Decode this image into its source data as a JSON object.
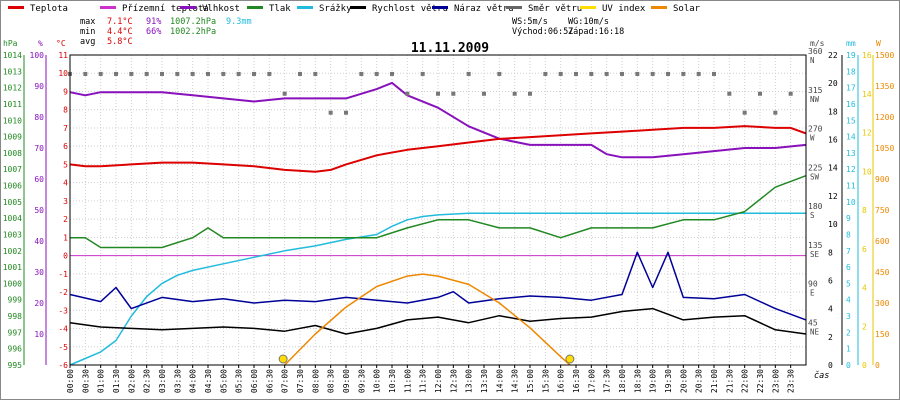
{
  "chart_data": {
    "type": "line",
    "title": "11.11.2009",
    "legend": [
      {
        "label": "Teplota",
        "color": "#dd0000"
      },
      {
        "label": "Přízemní teplota",
        "color": "#cc33cc"
      },
      {
        "label": "Vlhkost",
        "color": "#8811bb"
      },
      {
        "label": "Tlak",
        "color": "#228822"
      },
      {
        "label": "Srážky",
        "color": "#22bbdd"
      },
      {
        "label": "Rychlost větru",
        "color": "#000000"
      },
      {
        "label": "Náraz větru",
        "color": "#000099"
      },
      {
        "label": "Směr větru",
        "color": "#666666"
      },
      {
        "label": "UV index",
        "color": "#ffdd00"
      },
      {
        "label": "Solar",
        "color": "#ee8800"
      }
    ],
    "stats": {
      "max_label": "max",
      "max_temp": "7.1°C",
      "max_hum": "91%",
      "max_press": "1007.2hPa",
      "rain_total": "9.3mm",
      "min_label": "min",
      "min_temp": "4.4°C",
      "min_hum": "66%",
      "min_press": "1002.2hPa",
      "avg_label": "avg",
      "avg_temp": "5.8°C"
    },
    "wind_info": {
      "ws": "WS:5m/s",
      "wg": "WG:10m/s",
      "sunrise": "Východ:06:57",
      "sunset": "Západ:16:18"
    },
    "axes": {
      "hpa_unit": "hPa",
      "hpa_ticks": [
        "1014",
        "1013",
        "1012",
        "1011",
        "1010",
        "1009",
        "1008",
        "1007",
        "1006",
        "1005",
        "1004",
        "1003",
        "1002",
        "1001",
        "1000",
        "999",
        "998",
        "997",
        "996",
        "995"
      ],
      "pct_unit": "%",
      "pct_ticks": [
        "100",
        "90",
        "80",
        "70",
        "60",
        "50",
        "40",
        "30",
        "20",
        "10"
      ],
      "c_unit": "°C",
      "c_ticks": [
        "11",
        "10",
        "9",
        "8",
        "7",
        "6",
        "5",
        "4",
        "3",
        "2",
        "1",
        "0",
        "-1",
        "-2",
        "-3",
        "-4",
        "-5",
        "-6"
      ],
      "dir_unit": "m/s",
      "dir_ticks": [
        "360",
        "315",
        "270",
        "225",
        "180",
        "135",
        "90",
        "45"
      ],
      "dir_names": [
        "N",
        "NW",
        "W",
        "SW",
        "S",
        "SE",
        "E",
        "NE"
      ],
      "ms_ticks": [
        "22",
        "20",
        "18",
        "16",
        "14",
        "12",
        "10",
        "8",
        "6",
        "4",
        "2",
        "0"
      ],
      "mm_unit": "mm",
      "mm_ticks": [
        "19",
        "18",
        "17",
        "16",
        "15",
        "14",
        "13",
        "12",
        "11",
        "10",
        "9",
        "8",
        "7",
        "6",
        "5",
        "4",
        "3",
        "2",
        "1",
        "0"
      ],
      "uv_ticks": [
        "16",
        "14",
        "12",
        "10",
        "8",
        "6",
        "4",
        "2",
        "0"
      ],
      "w_unit": "W",
      "w_ticks": [
        "1500",
        "1350",
        "1200",
        "1050",
        "900",
        "750",
        "600",
        "450",
        "300",
        "150",
        "0"
      ],
      "x_title": "čas",
      "x_ticks": [
        "00:00",
        "00:30",
        "01:00",
        "01:30",
        "02:00",
        "02:30",
        "03:00",
        "03:30",
        "04:00",
        "04:30",
        "05:00",
        "05:30",
        "06:00",
        "06:30",
        "07:00",
        "07:30",
        "08:00",
        "08:30",
        "09:00",
        "09:30",
        "10:00",
        "10:30",
        "11:00",
        "11:30",
        "12:00",
        "12:30",
        "13:00",
        "13:30",
        "14:00",
        "14:30",
        "15:00",
        "15:30",
        "16:00",
        "16:30",
        "17:00",
        "17:30",
        "18:00",
        "18:30",
        "19:00",
        "19:30",
        "20:00",
        "20:30",
        "21:00",
        "21:30",
        "22:00",
        "22:30",
        "23:00",
        "23:30"
      ]
    },
    "series": [
      {
        "name": "Teplota",
        "unit": "°C",
        "color": "#dd0000",
        "x": [
          0,
          0.5,
          1,
          2,
          3,
          4,
          5,
          6,
          7,
          8,
          8.5,
          9,
          10,
          11,
          12,
          13,
          14,
          15,
          16,
          17,
          18,
          19,
          20,
          21,
          22,
          23,
          23.5,
          24
        ],
        "values": [
          5,
          4.9,
          4.9,
          5,
          5.1,
          5.1,
          5,
          4.9,
          4.7,
          4.6,
          4.7,
          5,
          5.5,
          5.8,
          6,
          6.2,
          6.4,
          6.5,
          6.6,
          6.7,
          6.8,
          6.9,
          7,
          7,
          7.1,
          7,
          7,
          6.7
        ]
      },
      {
        "name": "Vlhkost",
        "unit": "%",
        "color": "#8811bb",
        "x": [
          0,
          0.5,
          1,
          2,
          3,
          4,
          5,
          6,
          7,
          8,
          9,
          10,
          10.5,
          11,
          12,
          13,
          14,
          15,
          16,
          17,
          17.5,
          18,
          19,
          20,
          21,
          22,
          23,
          24
        ],
        "values": [
          88,
          87,
          88,
          88,
          88,
          87,
          86,
          85,
          86,
          86,
          86,
          89,
          91,
          87,
          83,
          77,
          73,
          71,
          71,
          71,
          68,
          67,
          67,
          68,
          69,
          70,
          70,
          71
        ]
      },
      {
        "name": "Tlak",
        "unit": "hPa",
        "color": "#228822",
        "x": [
          0,
          0.5,
          1,
          2,
          3,
          4,
          4.5,
          5,
          6,
          7,
          8,
          9,
          10,
          11,
          12,
          13,
          14,
          15,
          16,
          17,
          18,
          19,
          20,
          21,
          22,
          23,
          24
        ],
        "values": [
          1002.8,
          1002.8,
          1002.2,
          1002.2,
          1002.2,
          1002.8,
          1003.4,
          1002.8,
          1002.8,
          1002.8,
          1002.8,
          1002.8,
          1002.8,
          1003.4,
          1003.9,
          1003.9,
          1003.4,
          1003.4,
          1002.8,
          1003.4,
          1003.4,
          1003.4,
          1003.9,
          1003.9,
          1004.4,
          1005.9,
          1006.6
        ]
      },
      {
        "name": "Srážky",
        "unit": "mm",
        "color": "#22bbdd",
        "x": [
          0,
          0.5,
          1,
          1.5,
          2,
          2.5,
          3,
          3.5,
          4,
          5,
          6,
          7,
          8,
          9,
          10,
          10.5,
          11,
          11.5,
          12,
          13,
          14,
          15,
          16,
          17,
          18,
          19,
          20,
          21,
          22,
          23,
          24
        ],
        "values": [
          0,
          0.4,
          0.8,
          1.5,
          3,
          4.2,
          5,
          5.5,
          5.8,
          6.2,
          6.6,
          7,
          7.3,
          7.7,
          8,
          8.5,
          8.9,
          9.1,
          9.2,
          9.3,
          9.3,
          9.3,
          9.3,
          9.3,
          9.3,
          9.3,
          9.3,
          9.3,
          9.3,
          9.3,
          9.3
        ]
      },
      {
        "name": "Rychlost větru",
        "unit": "m/s",
        "color": "#000000",
        "x": [
          0,
          1,
          2,
          3,
          4,
          5,
          6,
          7,
          8,
          9,
          10,
          11,
          12,
          13,
          14,
          15,
          16,
          17,
          18,
          19,
          20,
          21,
          22,
          23,
          24
        ],
        "values": [
          3,
          2.7,
          2.6,
          2.5,
          2.6,
          2.7,
          2.6,
          2.4,
          2.8,
          2.2,
          2.6,
          3.2,
          3.4,
          3,
          3.5,
          3.1,
          3.3,
          3.4,
          3.8,
          4,
          3.2,
          3.4,
          3.5,
          2.5,
          2.2
        ]
      },
      {
        "name": "Náraz větru",
        "unit": "m/s",
        "color": "#000099",
        "x": [
          0,
          1,
          1.5,
          2,
          3,
          4,
          5,
          6,
          7,
          8,
          9,
          10,
          11,
          12,
          12.5,
          13,
          14,
          15,
          16,
          17,
          18,
          18.5,
          19,
          19.5,
          20,
          21,
          22,
          23,
          24
        ],
        "values": [
          5,
          4.5,
          5.5,
          4,
          4.8,
          4.5,
          4.7,
          4.4,
          4.6,
          4.5,
          4.8,
          4.6,
          4.4,
          4.8,
          5.2,
          4.4,
          4.7,
          4.9,
          4.8,
          4.6,
          5,
          8,
          5.5,
          8,
          4.8,
          4.7,
          5,
          4,
          3.2
        ]
      },
      {
        "name": "Solar",
        "unit": "W",
        "color": "#ee8800",
        "x": [
          7,
          8,
          9,
          10,
          11,
          11.5,
          12,
          13,
          14,
          15,
          16,
          16.3
        ],
        "values": [
          0,
          150,
          280,
          380,
          430,
          440,
          430,
          390,
          300,
          180,
          40,
          0
        ]
      }
    ],
    "wind_direction": {
      "unit": "deg",
      "x": [
        0,
        0.5,
        1,
        1.5,
        2,
        2.5,
        3,
        3.5,
        4,
        4.5,
        5,
        5.5,
        6,
        6.5,
        7,
        7.5,
        8,
        8.5,
        9,
        9.5,
        10,
        10.5,
        11,
        11.5,
        12,
        12.5,
        13,
        13.5,
        14,
        14.5,
        15,
        15.5,
        16,
        16.5,
        17,
        17.5,
        18,
        18.5,
        19,
        19.5,
        20,
        20.5,
        21,
        21.5,
        22,
        22.5,
        23,
        23.5
      ],
      "values": [
        338,
        338,
        338,
        338,
        338,
        338,
        338,
        338,
        338,
        338,
        338,
        338,
        338,
        338,
        315,
        338,
        338,
        293,
        293,
        338,
        338,
        338,
        315,
        338,
        315,
        315,
        338,
        315,
        338,
        315,
        315,
        338,
        338,
        338,
        338,
        338,
        338,
        338,
        338,
        338,
        338,
        338,
        338,
        315,
        293,
        315,
        293,
        315
      ]
    },
    "sun_markers": [
      "06:57",
      "16:18"
    ],
    "ylim_celsius": [
      -6,
      11
    ],
    "ylim_percent": [
      0,
      100
    ],
    "ylim_hpa": [
      995,
      1014
    ],
    "ylim_ms": [
      0,
      22
    ],
    "ylim_mm": [
      0,
      19
    ],
    "ylim_deg": [
      0,
      360
    ],
    "ylim_w": [
      0,
      1500
    ],
    "zero_line_celsius": 0
  }
}
